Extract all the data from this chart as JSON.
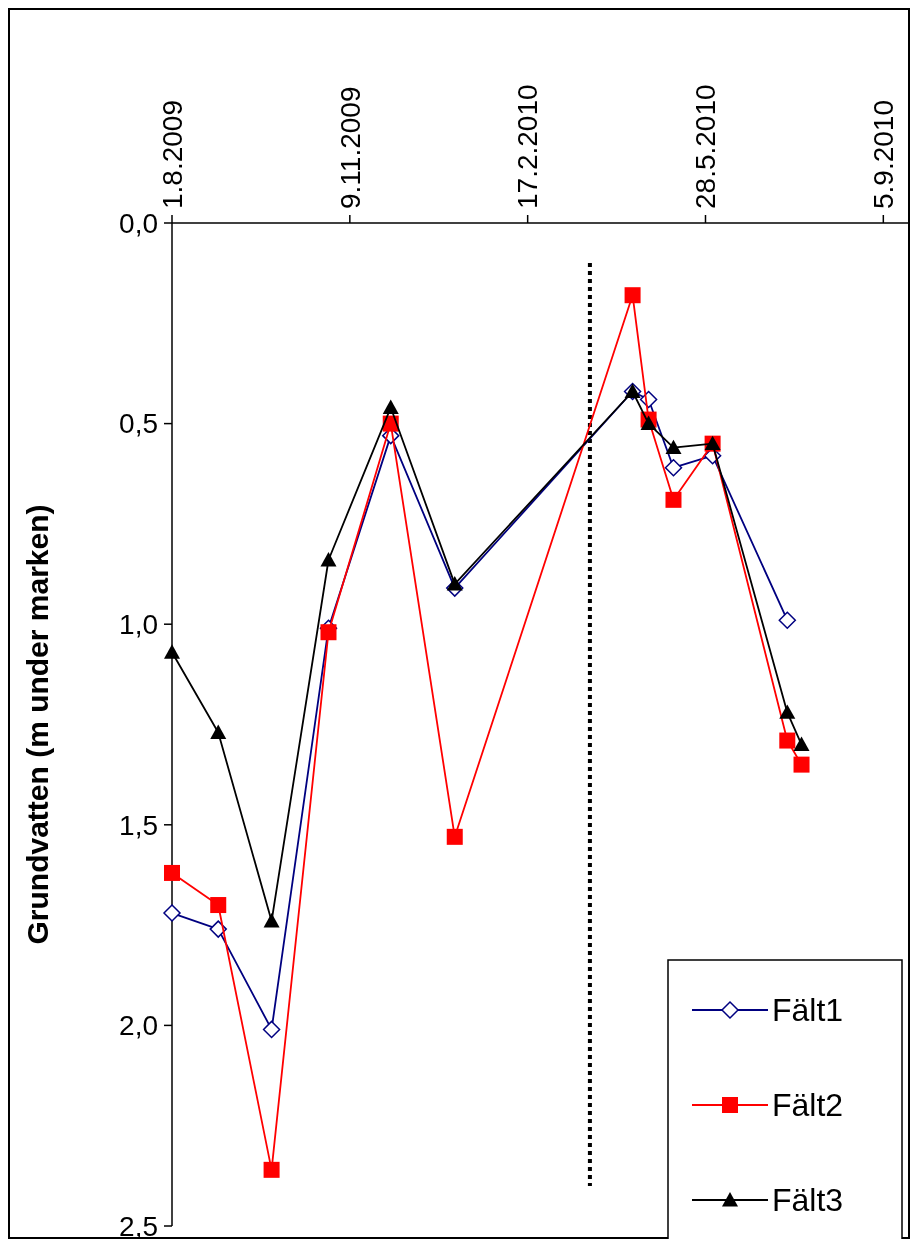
{
  "chart_data": {
    "type": "line",
    "ylabel": "Grundvatten (m under marken)",
    "xlim": [
      "2009-08-01",
      "2010-09-20"
    ],
    "xticks": [
      {
        "value": "2009-08-01",
        "label": "1.8.2009"
      },
      {
        "value": "2009-11-09",
        "label": "9.11.2009"
      },
      {
        "value": "2010-02-17",
        "label": "17.2.2010"
      },
      {
        "value": "2010-05-28",
        "label": "28.5.2010"
      },
      {
        "value": "2010-09-05",
        "label": "5.9.2010"
      }
    ],
    "ylim": [
      2.5,
      0
    ],
    "yticks": [
      {
        "value": 0,
        "label": "0,0"
      },
      {
        "value": 0.5,
        "label": "0,5"
      },
      {
        "value": 1,
        "label": "1,0"
      },
      {
        "value": 1.5,
        "label": "1,5"
      },
      {
        "value": 2,
        "label": "2,0"
      },
      {
        "value": 2.5,
        "label": "2,5"
      }
    ],
    "grid": false,
    "legend": "bottom right",
    "line_style": "solid",
    "ref_lines": [
      {
        "axis": "x",
        "value": "2010-03-24",
        "line_style": "dotted",
        "color": "#000000"
      }
    ],
    "series": [
      {
        "name": "Fält1",
        "color": "#000080",
        "marker": "diamond",
        "x": [
          "2009-08-01",
          "2009-08-27",
          "2009-09-26",
          "2009-10-28",
          "2009-12-02",
          "2010-01-07",
          "2010-04-17",
          "2010-04-26",
          "2010-05-10",
          "2010-06-01",
          "2010-07-13"
        ],
        "values": [
          1.72,
          1.76,
          2.01,
          1.01,
          0.53,
          0.91,
          0.42,
          0.44,
          0.61,
          0.58,
          0.99
        ]
      },
      {
        "name": "Fält2",
        "color": "#ff0000",
        "marker": "square",
        "x": [
          "2009-08-01",
          "2009-08-27",
          "2009-09-26",
          "2009-10-28",
          "2009-12-02",
          "2010-01-07",
          "2010-04-17",
          "2010-04-26",
          "2010-05-10",
          "2010-06-01",
          "2010-07-13",
          "2010-07-21"
        ],
        "values": [
          1.62,
          1.7,
          2.36,
          1.02,
          0.5,
          1.53,
          0.18,
          0.49,
          0.69,
          0.55,
          1.29,
          1.35
        ]
      },
      {
        "name": "Fält3",
        "color": "#000000",
        "marker": "triangle",
        "x": [
          "2009-08-01",
          "2009-08-27",
          "2009-09-26",
          "2009-10-28",
          "2009-12-02",
          "2010-01-07",
          "2010-04-17",
          "2010-04-26",
          "2010-05-10",
          "2010-06-01",
          "2010-07-13",
          "2010-07-21"
        ],
        "values": [
          1.07,
          1.27,
          1.74,
          0.84,
          0.46,
          0.9,
          0.42,
          0.5,
          0.56,
          0.55,
          1.22,
          1.3
        ]
      }
    ]
  }
}
